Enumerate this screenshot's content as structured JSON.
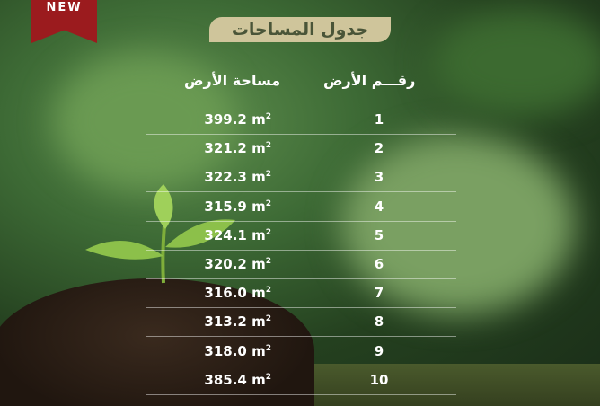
{
  "badge": "NEW",
  "title": "جدول المساحات",
  "headers": {
    "number": "رقـــم الأرض",
    "area": "مساحة الأرض"
  },
  "unit": "m",
  "unit_exp": "2",
  "rows": [
    {
      "n": "1",
      "a": "399.2"
    },
    {
      "n": "2",
      "a": "321.2"
    },
    {
      "n": "3",
      "a": "322.3"
    },
    {
      "n": "4",
      "a": "315.9"
    },
    {
      "n": "5",
      "a": "324.1"
    },
    {
      "n": "6",
      "a": "320.2"
    },
    {
      "n": "7",
      "a": "316.0"
    },
    {
      "n": "8",
      "a": "313.2"
    },
    {
      "n": "9",
      "a": "318.0"
    },
    {
      "n": "10",
      "a": "385.4"
    }
  ],
  "colors": {
    "ribbon": "#9b1b1e",
    "title_bg": "#cfc59b",
    "title_text": "#4a5538"
  }
}
